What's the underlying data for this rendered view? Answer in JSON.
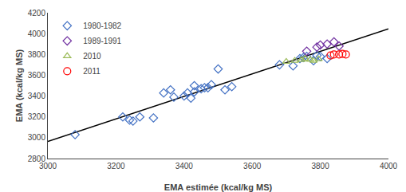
{
  "chart_data": {
    "type": "scatter",
    "xlabel": "EMA estimée (kcal/kg MS)",
    "ylabel": "EMA (kcal/kg MS)",
    "xlim": [
      3000,
      4000
    ],
    "ylim": [
      2800,
      4200
    ],
    "xticks": [
      3000,
      3200,
      3400,
      3600,
      3800,
      4000
    ],
    "yticks": [
      2800,
      3000,
      3200,
      3400,
      3600,
      3800,
      4000,
      4200
    ],
    "grid": false,
    "legend": "upper left",
    "series": [
      {
        "type": "line",
        "color": "black",
        "line_style": "solid",
        "x": [
          3000,
          4000
        ],
        "values": [
          2965,
          4045
        ]
      },
      {
        "name": "1980-1982",
        "type": "scatter",
        "color": "#4472C4",
        "marker": "diamond",
        "x": [
          3080,
          3220,
          3240,
          3250,
          3270,
          3310,
          3340,
          3360,
          3370,
          3400,
          3410,
          3420,
          3430,
          3430,
          3450,
          3460,
          3470,
          3480,
          3500,
          3520,
          3540,
          3680,
          3720,
          3740,
          3750,
          3760,
          3780,
          3790,
          3800,
          3820
        ],
        "values": [
          3030,
          3200,
          3170,
          3160,
          3200,
          3190,
          3430,
          3460,
          3390,
          3400,
          3430,
          3380,
          3440,
          3500,
          3470,
          3480,
          3480,
          3510,
          3660,
          3460,
          3490,
          3700,
          3690,
          3760,
          3770,
          3780,
          3740,
          3790,
          3780,
          3760
        ]
      },
      {
        "name": "1989-1991",
        "type": "scatter",
        "color": "#7030A0",
        "marker": "diamond",
        "x": [
          3760,
          3790,
          3800,
          3820,
          3840,
          3855
        ],
        "values": [
          3830,
          3870,
          3890,
          3900,
          3920,
          3880
        ]
      },
      {
        "name": "2010",
        "type": "scatter",
        "color": "#9BBB59",
        "marker": "triangle-up",
        "x": [
          3700,
          3725,
          3745,
          3755,
          3770,
          3780,
          3795
        ],
        "values": [
          3730,
          3740,
          3748,
          3760,
          3750,
          3740,
          3755
        ]
      },
      {
        "name": "2011",
        "type": "scatter",
        "color": "#FF0000",
        "marker": "circle",
        "x": [
          3830,
          3840,
          3855,
          3865,
          3875
        ],
        "values": [
          3790,
          3800,
          3800,
          3805,
          3800
        ]
      }
    ]
  }
}
